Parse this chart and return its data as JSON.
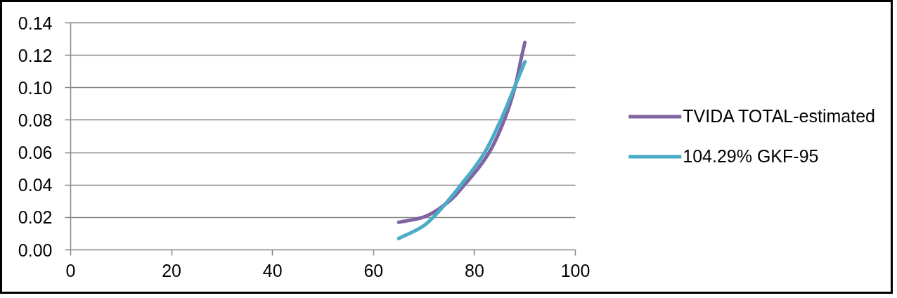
{
  "chart_data": {
    "type": "line",
    "series": [
      {
        "name": "TVIDA TOTAL-estimated",
        "color": "#8064a2",
        "x": [
          65,
          69.7,
          75,
          78,
          82.9,
          85.9,
          88,
          89.4,
          90
        ],
        "values": [
          0.017,
          0.02,
          0.03,
          0.04,
          0.06,
          0.08,
          0.1,
          0.12,
          0.128
        ]
      },
      {
        "name": "104.29% GKF-95",
        "color": "#4bacc6",
        "x": [
          65,
          70,
          71.8,
          77.3,
          82,
          85.2,
          87.9,
          90
        ],
        "values": [
          0.007,
          0.015,
          0.02,
          0.04,
          0.06,
          0.08,
          0.1,
          0.116
        ]
      }
    ],
    "xlim": [
      0,
      100
    ],
    "xticks": [
      0,
      20,
      40,
      60,
      80,
      100
    ],
    "ylim": [
      0,
      0.14
    ],
    "yticks": [
      {
        "value": 0,
        "label": "0.00"
      },
      {
        "value": 0.02,
        "label": "0.02"
      },
      {
        "value": 0.04,
        "label": "0.04"
      },
      {
        "value": 0.06,
        "label": "0.06"
      },
      {
        "value": 0.08,
        "label": "0.08"
      },
      {
        "value": 0.1,
        "label": "0.10"
      },
      {
        "value": 0.12,
        "label": "0.12"
      },
      {
        "value": 0.14,
        "label": "0.14"
      }
    ],
    "grid": "y",
    "legend": "right",
    "marker": "none",
    "line_style": "solid"
  }
}
